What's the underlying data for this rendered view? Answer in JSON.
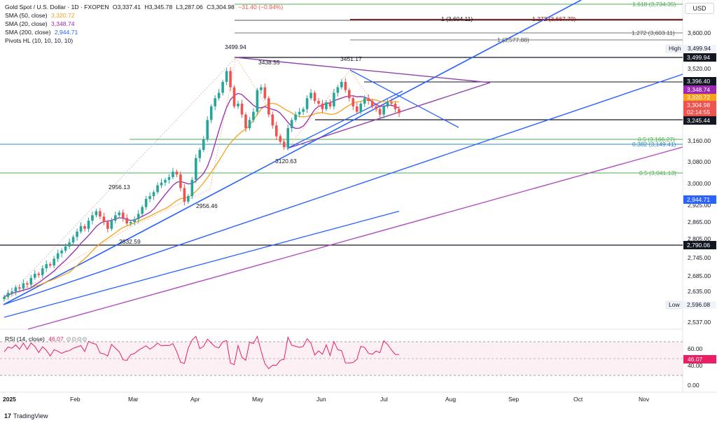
{
  "header": {
    "symbol_title": "Gold Spot / U.S. Dollar · 1D · FXOPEN",
    "ohlc": {
      "o": "O3,337.41",
      "h": "H3,345.78",
      "l": "L3,287.06",
      "c": "C3,304.98",
      "chg": "−31.40 (−0.94%)"
    },
    "indicators": [
      {
        "label": "SMA (50, close)",
        "value": "3,320.72",
        "color": "#f7a21b"
      },
      {
        "label": "SMA (20, close)",
        "value": "3,348.74",
        "color": "#9c27b0"
      },
      {
        "label": "SMA (200, close)",
        "value": "2,944.71",
        "color": "#2962ff"
      },
      {
        "label": "Pivots HL (10, 10, 10, 10)",
        "value": "",
        "color": "#131722"
      }
    ],
    "currency": "USD"
  },
  "colors": {
    "up": "#26a69a",
    "down": "#ef5350",
    "sma50": "#f7a21b",
    "sma20": "#9c27b0",
    "sma200": "#2962ff",
    "trend": "#2962ff",
    "purple_line": "#b14cbf",
    "fib_green": "#4caf50",
    "fib_blue": "#2e8bc0",
    "level_dark": "#131722",
    "red_level": "#8b1a1a",
    "rsi": "#e91e63"
  },
  "price_axis": {
    "ticks": [
      "3,600.00",
      "3,520.00",
      "3,160.00",
      "3,080.00",
      "3,000.00",
      "2,925.00",
      "2,865.00",
      "2,805.00",
      "2,745.00",
      "2,685.00",
      "2,635.00",
      "2,537.00"
    ],
    "tick_values": [
      3600,
      3520,
      3160,
      3080,
      3000,
      2925,
      2865,
      2805,
      2745,
      2685,
      2635,
      2537
    ],
    "labels": [
      {
        "text": "High",
        "kind": "plain"
      },
      {
        "text": "3,499.94",
        "kind": "dark"
      },
      {
        "text": "3,396.40",
        "kind": "dark"
      },
      {
        "text": "3,348.74",
        "kind": "purple"
      },
      {
        "text": "3,320.72",
        "kind": "orange"
      },
      {
        "text": "3,304.98",
        "kind": "red"
      },
      {
        "text": "02:14:55",
        "kind": "red"
      },
      {
        "text": "3,245.44",
        "kind": "dark"
      },
      {
        "text": "2,944.71",
        "kind": "blue"
      },
      {
        "text": "2,790.06",
        "kind": "dark"
      },
      {
        "text": "Low",
        "kind": "plain"
      },
      {
        "text": "2,596.08",
        "kind": "plain"
      }
    ]
  },
  "time_axis": [
    "2025",
    "Feb",
    "Mar",
    "Apr",
    "May",
    "Jun",
    "Jul",
    "Aug",
    "Sep",
    "Oct",
    "Nov"
  ],
  "fib_labels": [
    {
      "text": "1.618 (3,734.35)",
      "color": "green"
    },
    {
      "text": "1.272 (3,667.79)",
      "color": "red"
    },
    {
      "text": "1 (3,604.11)",
      "color": "dark"
    },
    {
      "text": "1.272 (3,603.11)",
      "color": "dark"
    },
    {
      "text": "1 (3,577.88)",
      "color": "dark"
    },
    {
      "text": "0.5 (3,166.27)",
      "color": "green"
    },
    {
      "text": "0.382 (3,149.41)",
      "color": "blue"
    },
    {
      "text": "0.5 (3,041.13)",
      "color": "green"
    }
  ],
  "pivot_labels": [
    "3499.94",
    "3438.55",
    "3451.17",
    "3120.63",
    "2956.13",
    "2956.46",
    "2832.59"
  ],
  "rsi": {
    "label": "RSI (14, close)",
    "value": "46.07",
    "ticks": [
      "60.00",
      "40.00",
      "0.00"
    ],
    "tick_values": [
      60,
      40,
      0
    ]
  },
  "branding": "TradingView",
  "chart_data": {
    "type": "candlestick",
    "closes": [
      2630,
      2645,
      2650,
      2665,
      2660,
      2680,
      2675,
      2700,
      2715,
      2710,
      2735,
      2750,
      2745,
      2770,
      2790,
      2800,
      2815,
      2830,
      2850,
      2870,
      2890,
      2880,
      2910,
      2930,
      2945,
      2925,
      2905,
      2880,
      2910,
      2930,
      2940,
      2920,
      2900,
      2905,
      2915,
      2935,
      2960,
      2990,
      3000,
      3015,
      3040,
      3050,
      3060,
      3070,
      3090,
      3080,
      3030,
      2980,
      3000,
      3060,
      3140,
      3170,
      3210,
      3280,
      3330,
      3360,
      3380,
      3420,
      3460,
      3400,
      3330,
      3340,
      3300,
      3250,
      3280,
      3310,
      3390,
      3400,
      3360,
      3300,
      3260,
      3220,
      3200,
      3180,
      3250,
      3280,
      3300,
      3310,
      3320,
      3360,
      3380,
      3350,
      3340,
      3320,
      3345,
      3330,
      3380,
      3400,
      3420,
      3390,
      3360,
      3330,
      3310,
      3340,
      3360,
      3350,
      3330,
      3320,
      3300,
      3330,
      3345,
      3340,
      3320,
      3305
    ],
    "sma50_last": 3320.72,
    "sma20_last": 3348.74,
    "sma200_last": 2944.71
  }
}
